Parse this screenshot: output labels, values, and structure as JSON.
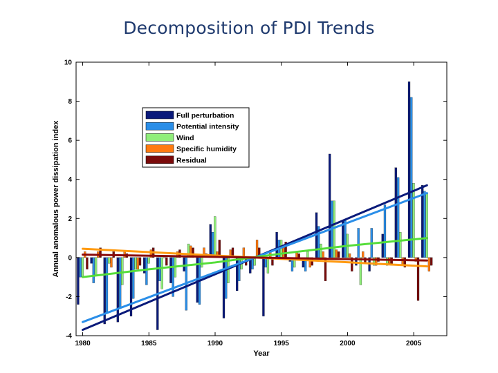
{
  "slide": {
    "title": "Decomposition of PDI Trends"
  },
  "chart_data": {
    "type": "bar",
    "title": "Decomposition of PDI Trends",
    "xlabel": "Year",
    "ylabel": "Annual anomalous power dissipation index",
    "xlim": [
      1979.5,
      2007.5
    ],
    "ylim": [
      -4,
      10
    ],
    "xticks": [
      1980,
      1985,
      1990,
      1995,
      2000,
      2005
    ],
    "yticks": [
      -4,
      -2,
      0,
      2,
      4,
      6,
      8,
      10
    ],
    "grid": false,
    "legend_position": "upper-left",
    "years": [
      1980,
      1981,
      1982,
      1983,
      1984,
      1985,
      1986,
      1987,
      1988,
      1989,
      1990,
      1991,
      1992,
      1993,
      1994,
      1995,
      1996,
      1997,
      1998,
      1999,
      2000,
      2001,
      2002,
      2003,
      2004,
      2005,
      2006
    ],
    "series": [
      {
        "name": "Full perturbation",
        "color": "#0a1a7a",
        "values": [
          -2.4,
          -0.3,
          -3.4,
          -3.3,
          -3.0,
          -0.8,
          -3.7,
          -1.3,
          -0.7,
          -2.3,
          1.7,
          -3.1,
          -1.7,
          -0.8,
          -3.0,
          1.3,
          -0.2,
          -0.5,
          2.3,
          5.3,
          1.9,
          -0.4,
          -0.7,
          1.2,
          4.6,
          9.0,
          3.7
        ]
      },
      {
        "name": "Potential intensity",
        "color": "#2a8ee8",
        "values": [
          -1.0,
          -1.3,
          -2.8,
          -2.6,
          -2.1,
          -1.4,
          -1.2,
          -2.0,
          -2.7,
          -2.4,
          1.3,
          -2.1,
          -1.2,
          -0.6,
          -0.5,
          0.9,
          -0.7,
          -0.7,
          1.6,
          2.9,
          1.9,
          1.5,
          1.5,
          2.7,
          4.1,
          8.2,
          3.4
        ]
      },
      {
        "name": "Wind",
        "color": "#90ee7a",
        "values": [
          -1.0,
          -0.9,
          -0.3,
          -1.4,
          -0.6,
          -0.3,
          -1.6,
          -1.0,
          0.7,
          -0.5,
          2.1,
          -1.3,
          -0.6,
          -0.4,
          -0.8,
          0.9,
          -0.5,
          0.3,
          0.7,
          2.9,
          1.2,
          -1.4,
          -0.4,
          -0.4,
          1.3,
          3.8,
          3.3
        ]
      },
      {
        "name": "Specific humidity",
        "color": "#ff7a10",
        "values": [
          0.3,
          0.3,
          -0.5,
          0.3,
          -0.6,
          0.4,
          0.0,
          0.3,
          0.6,
          0.5,
          0.3,
          0.4,
          0.5,
          0.9,
          0.3,
          0.5,
          0.3,
          -0.5,
          0.3,
          0.4,
          0.2,
          0.3,
          -0.4,
          -0.3,
          -0.4,
          -0.2,
          -0.7
        ]
      },
      {
        "name": "Residual",
        "color": "#7a0a0a",
        "values": [
          -0.6,
          0.5,
          0.3,
          0.2,
          -0.4,
          0.5,
          -0.4,
          0.4,
          0.5,
          0.2,
          0.9,
          0.5,
          -0.4,
          0.5,
          -0.4,
          0.8,
          0.2,
          -0.4,
          -1.2,
          0.3,
          -0.7,
          -0.3,
          -0.2,
          -0.4,
          -0.5,
          -2.2,
          -0.4
        ]
      }
    ],
    "trend_lines": [
      {
        "name": "Full perturbation trend",
        "color": "#0a1a7a",
        "x": [
          1980,
          2006
        ],
        "y": [
          -3.7,
          3.7
        ]
      },
      {
        "name": "Potential intensity trend",
        "color": "#2a8ee8",
        "x": [
          1980,
          2006
        ],
        "y": [
          -3.3,
          3.3
        ]
      },
      {
        "name": "Wind trend",
        "color": "#55dd3a",
        "x": [
          1980,
          1985,
          1990,
          1995,
          2000,
          2006
        ],
        "y": [
          -1.0,
          -0.6,
          -0.25,
          0.2,
          0.6,
          1.0
        ]
      },
      {
        "name": "Specific humidity trend",
        "color": "#ff9a10",
        "x": [
          1980,
          2006
        ],
        "y": [
          0.45,
          -0.45
        ]
      },
      {
        "name": "Residual trend",
        "color": "#8a0a0a",
        "x": [
          1980,
          2006
        ],
        "y": [
          0.15,
          -0.15
        ]
      }
    ]
  }
}
